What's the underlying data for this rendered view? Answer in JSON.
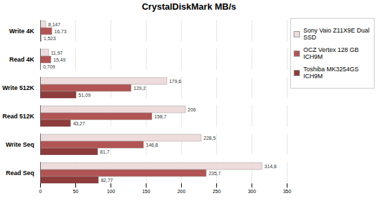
{
  "chart_data": {
    "type": "bar",
    "orientation": "horizontal",
    "title": "CrystalDiskMark MB/s",
    "categories": [
      "Write 4K",
      "Read 4K",
      "Write 512K",
      "Read 512K",
      "Write Seq",
      "Read Seq"
    ],
    "series": [
      {
        "name": "Sony Vaio Z11X9E Dual SSD",
        "color": "#eedcdc",
        "values": [
          8.147,
          11.97,
          179.6,
          206,
          228.5,
          314.8
        ],
        "value_labels": [
          "8,147",
          "11,97",
          "179,6",
          "206",
          "228,5",
          "314,8"
        ]
      },
      {
        "name": "OCZ Vertex 128 GB ICH9M",
        "color": "#b25454",
        "values": [
          16.73,
          15.49,
          129.2,
          158.7,
          146.8,
          235.7
        ],
        "value_labels": [
          "16,73",
          "15,49",
          "129,2",
          "158,7",
          "146,8",
          "235,7"
        ]
      },
      {
        "name": "Toshiba MK3254GS ICH9M",
        "color": "#8e3b3b",
        "values": [
          1.523,
          0.709,
          51.09,
          43.27,
          81.7,
          82.77
        ],
        "value_labels": [
          "1,523",
          "0,709",
          "51,09",
          "43,27",
          "81,7",
          "82,77"
        ]
      }
    ],
    "xlim": [
      0,
      350
    ],
    "xticks": [
      0,
      50,
      100,
      150,
      200,
      250,
      300,
      350
    ],
    "grid": true,
    "legend": "top-right",
    "data_labels": true
  }
}
